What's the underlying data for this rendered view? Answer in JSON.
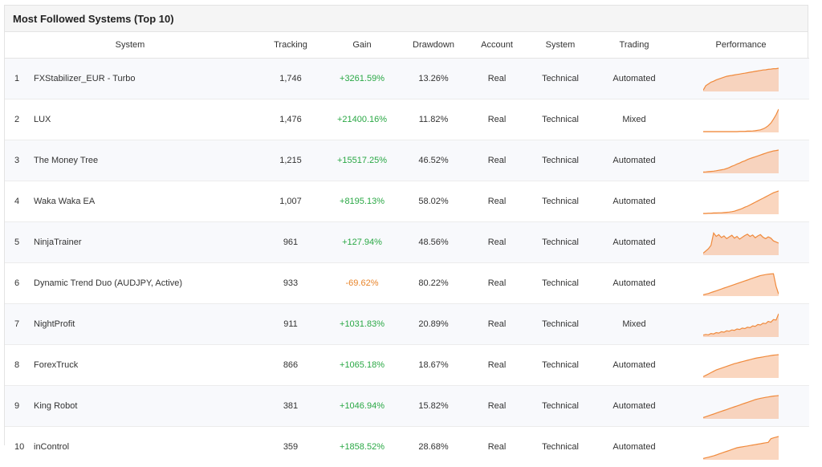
{
  "panel": {
    "title": "Most Followed Systems (Top 10)"
  },
  "table": {
    "headers": [
      "System",
      "Tracking",
      "Gain",
      "Drawdown",
      "Account",
      "System",
      "Trading",
      "Performance"
    ],
    "rows": [
      {
        "rank": "1",
        "name": "FXStabilizer_EUR - Turbo",
        "tracking": "1,746",
        "gain": "+3261.59%",
        "gain_sign": "pos",
        "drawdown": "13.26%",
        "account": "Real",
        "system": "Technical",
        "trading": "Automated",
        "perf": [
          2,
          22,
          30,
          38,
          42,
          48,
          52,
          56,
          60,
          64,
          66,
          68,
          70,
          72,
          74,
          76,
          78,
          80,
          82,
          84,
          86,
          88,
          90,
          92,
          93,
          95,
          96,
          98,
          98,
          100
        ]
      },
      {
        "rank": "2",
        "name": "LUX",
        "tracking": "1,476",
        "gain": "+21400.16%",
        "gain_sign": "pos",
        "drawdown": "11.82%",
        "account": "Real",
        "system": "Technical",
        "trading": "Mixed",
        "perf": [
          0,
          0,
          0,
          0,
          0,
          0,
          0,
          0,
          0,
          0,
          0,
          0,
          0,
          0,
          1,
          1,
          1,
          2,
          2,
          3,
          4,
          6,
          8,
          12,
          18,
          26,
          38,
          55,
          75,
          100
        ]
      },
      {
        "rank": "3",
        "name": "The Money Tree",
        "tracking": "1,215",
        "gain": "+15517.25%",
        "gain_sign": "pos",
        "drawdown": "46.52%",
        "account": "Real",
        "system": "Technical",
        "trading": "Automated",
        "perf": [
          2,
          3,
          4,
          5,
          6,
          8,
          10,
          12,
          14,
          18,
          22,
          28,
          32,
          38,
          42,
          48,
          52,
          58,
          62,
          66,
          70,
          74,
          78,
          82,
          86,
          90,
          93,
          96,
          98,
          100
        ]
      },
      {
        "rank": "4",
        "name": "Waka Waka EA",
        "tracking": "1,007",
        "gain": "+8195.13%",
        "gain_sign": "pos",
        "drawdown": "58.02%",
        "account": "Real",
        "system": "Technical",
        "trading": "Automated",
        "perf": [
          0,
          0,
          1,
          1,
          2,
          2,
          3,
          3,
          4,
          5,
          6,
          8,
          10,
          14,
          18,
          22,
          28,
          32,
          38,
          44,
          50,
          56,
          62,
          68,
          74,
          80,
          86,
          92,
          96,
          100
        ]
      },
      {
        "rank": "5",
        "name": "NinjaTrainer",
        "tracking": "961",
        "gain": "+127.94%",
        "gain_sign": "pos",
        "drawdown": "48.56%",
        "account": "Real",
        "system": "Technical",
        "trading": "Automated",
        "perf": [
          5,
          15,
          25,
          40,
          95,
          80,
          88,
          75,
          82,
          70,
          78,
          85,
          72,
          80,
          68,
          76,
          84,
          90,
          80,
          86,
          74,
          82,
          88,
          76,
          70,
          78,
          72,
          60,
          55,
          50
        ]
      },
      {
        "rank": "6",
        "name": "Dynamic Trend Duo (AUDJPY, Active)",
        "tracking": "933",
        "gain": "-69.62%",
        "gain_sign": "neg",
        "drawdown": "80.22%",
        "account": "Real",
        "system": "Technical",
        "trading": "Automated",
        "perf": [
          2,
          5,
          8,
          12,
          16,
          20,
          24,
          28,
          32,
          36,
          40,
          44,
          48,
          52,
          56,
          60,
          64,
          68,
          72,
          76,
          80,
          84,
          88,
          90,
          92,
          94,
          95,
          96,
          40,
          5
        ]
      },
      {
        "rank": "7",
        "name": "NightProfit",
        "tracking": "911",
        "gain": "+1031.83%",
        "gain_sign": "pos",
        "drawdown": "20.89%",
        "account": "Real",
        "system": "Technical",
        "trading": "Mixed",
        "perf": [
          5,
          8,
          6,
          12,
          10,
          16,
          14,
          20,
          18,
          24,
          22,
          28,
          26,
          32,
          30,
          36,
          34,
          40,
          38,
          46,
          44,
          52,
          50,
          58,
          56,
          66,
          62,
          74,
          72,
          100
        ]
      },
      {
        "rank": "8",
        "name": "ForexTruck",
        "tracking": "866",
        "gain": "+1065.18%",
        "gain_sign": "pos",
        "drawdown": "18.67%",
        "account": "Real",
        "system": "Technical",
        "trading": "Automated",
        "perf": [
          2,
          8,
          14,
          20,
          26,
          32,
          36,
          40,
          44,
          48,
          52,
          56,
          60,
          63,
          66,
          69,
          72,
          75,
          78,
          81,
          84,
          86,
          88,
          90,
          92,
          94,
          96,
          98,
          99,
          100
        ]
      },
      {
        "rank": "9",
        "name": "King Robot",
        "tracking": "381",
        "gain": "+1046.94%",
        "gain_sign": "pos",
        "drawdown": "15.82%",
        "account": "Real",
        "system": "Technical",
        "trading": "Automated",
        "perf": [
          2,
          6,
          10,
          14,
          18,
          22,
          26,
          30,
          34,
          38,
          42,
          46,
          50,
          54,
          58,
          62,
          66,
          70,
          74,
          78,
          82,
          85,
          88,
          90,
          92,
          94,
          96,
          98,
          99,
          100
        ]
      },
      {
        "rank": "10",
        "name": "inControl",
        "tracking": "359",
        "gain": "+1858.52%",
        "gain_sign": "pos",
        "drawdown": "28.68%",
        "account": "Real",
        "system": "Technical",
        "trading": "Automated",
        "perf": [
          2,
          5,
          8,
          11,
          14,
          18,
          22,
          26,
          30,
          34,
          38,
          42,
          46,
          50,
          52,
          54,
          56,
          58,
          60,
          62,
          64,
          66,
          68,
          70,
          72,
          74,
          90,
          94,
          97,
          100
        ]
      }
    ]
  },
  "colors": {
    "accent": "#f08a3c",
    "fill": "#f6b58a",
    "positive": "#2aa845",
    "negative": "#e8852b"
  }
}
